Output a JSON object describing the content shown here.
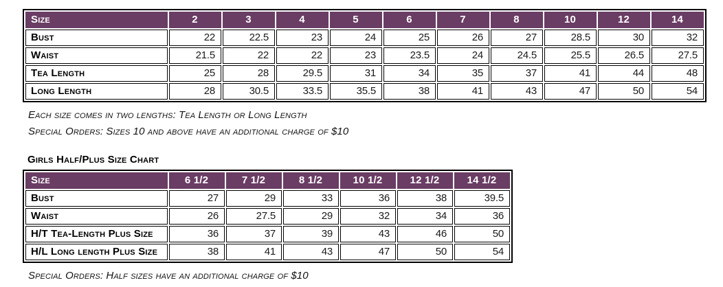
{
  "colors": {
    "header_bg": "#6A3D64",
    "header_text": "#FFFFFF",
    "table_border": "#000000",
    "value_text": "#1A1A1A"
  },
  "standard_chart": {
    "header_label": "Size",
    "columns": [
      "2",
      "3",
      "4",
      "5",
      "6",
      "7",
      "8",
      "10",
      "12",
      "14"
    ],
    "rows": [
      {
        "label": "Bust",
        "values": [
          "22",
          "22.5",
          "23",
          "24",
          "25",
          "26",
          "27",
          "28.5",
          "30",
          "32"
        ]
      },
      {
        "label": "Waist",
        "values": [
          "21.5",
          "22",
          "22",
          "23",
          "23.5",
          "24",
          "24.5",
          "25.5",
          "26.5",
          "27.5"
        ]
      },
      {
        "label": "Tea Length",
        "values": [
          "25",
          "28",
          "29.5",
          "31",
          "34",
          "35",
          "37",
          "41",
          "44",
          "48"
        ]
      },
      {
        "label": "Long Length",
        "values": [
          "28",
          "30.5",
          "33.5",
          "35.5",
          "38",
          "41",
          "43",
          "47",
          "50",
          "54"
        ]
      }
    ],
    "notes": [
      "Each size comes in two lengths: Tea Length or Long Length",
      "Special Orders: Sizes 10 and above have an additional charge of $10"
    ]
  },
  "half_plus_chart": {
    "title": "Girls Half/Plus Size Chart",
    "header_label": "Size",
    "columns": [
      "6 1/2",
      "7 1/2",
      "8 1/2",
      "10 1/2",
      "12 1/2",
      "14 1/2"
    ],
    "rows": [
      {
        "label": "Bust",
        "values": [
          "27",
          "29",
          "33",
          "36",
          "38",
          "39.5"
        ]
      },
      {
        "label": "Waist",
        "values": [
          "26",
          "27.5",
          "29",
          "32",
          "34",
          "36"
        ]
      },
      {
        "label": "H/T Tea-Length Plus Size",
        "values": [
          "36",
          "37",
          "39",
          "43",
          "46",
          "50"
        ]
      },
      {
        "label": "H/L Long length Plus Size",
        "values": [
          "38",
          "41",
          "43",
          "47",
          "50",
          "54"
        ]
      }
    ],
    "note": "Special Orders: Half sizes have an additional charge of $10"
  }
}
